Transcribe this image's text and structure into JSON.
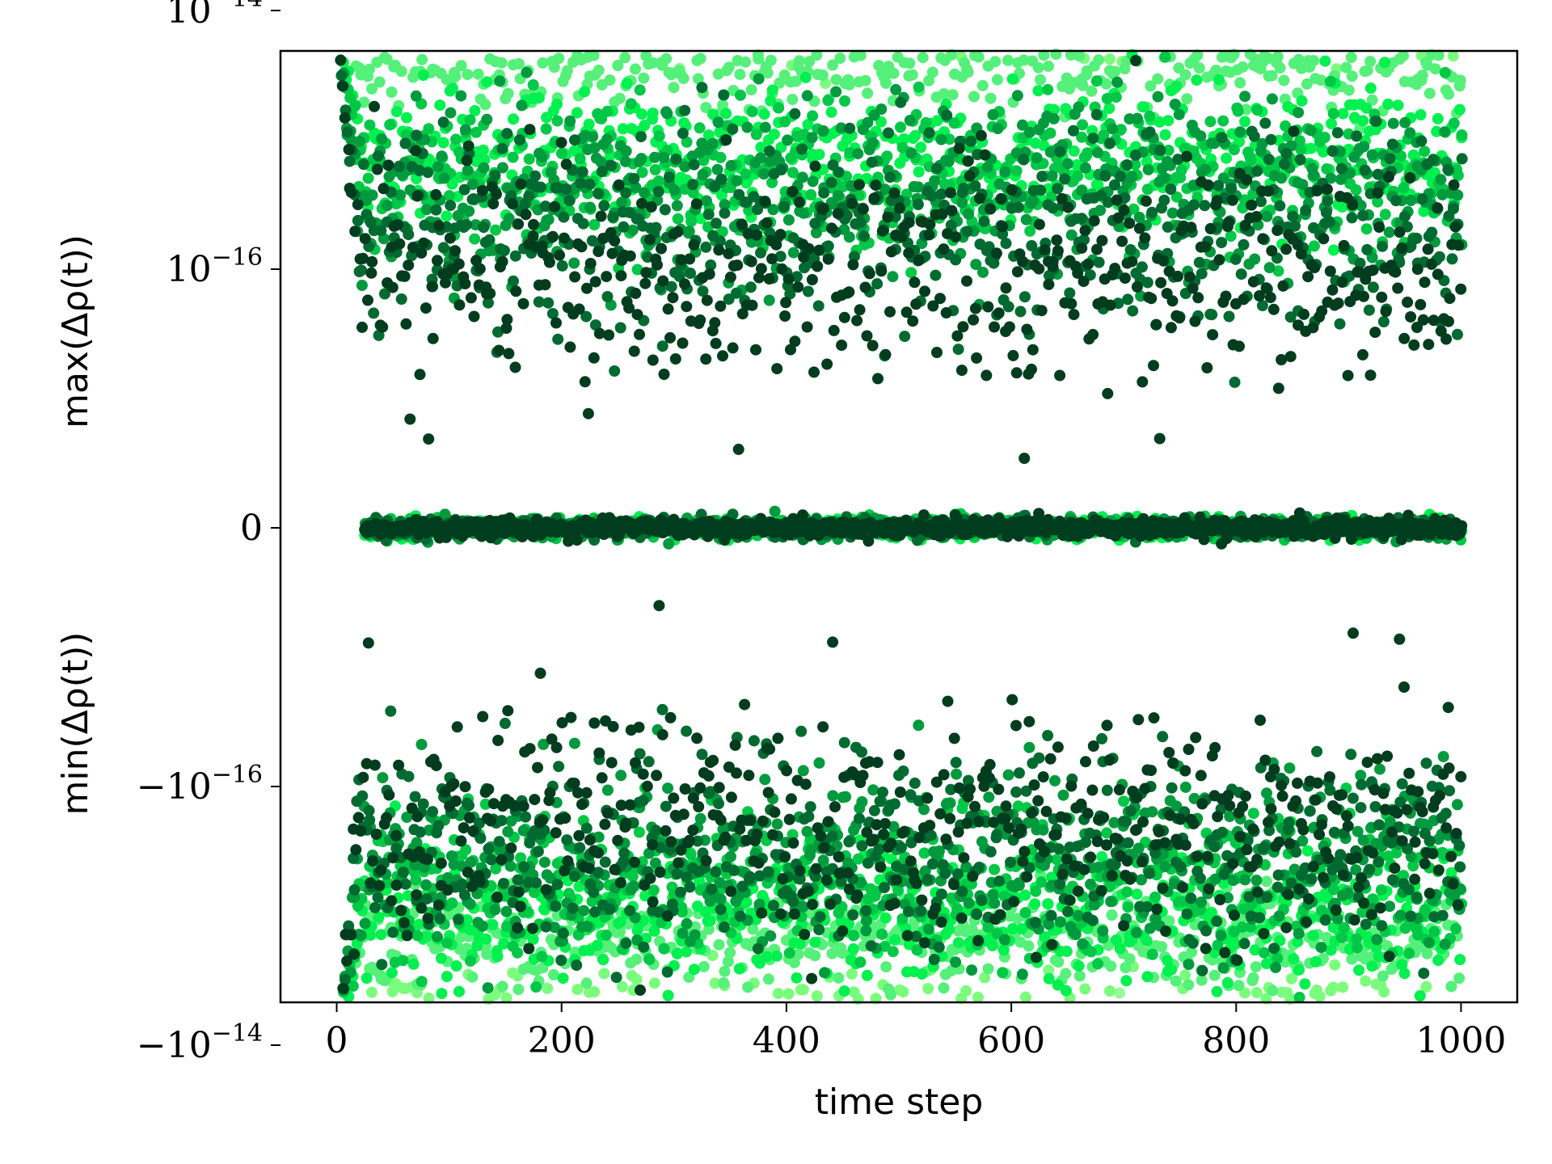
{
  "chart_data": {
    "type": "scatter",
    "title": "",
    "xlabel": "time step",
    "ylabel_top": "max(Δρ(t))",
    "ylabel_bottom": "min(Δρ(t))",
    "xlim": [
      -50,
      1050
    ],
    "x_ticks": [
      0,
      200,
      400,
      600,
      800,
      1000
    ],
    "x_tick_labels": [
      "0",
      "200",
      "400",
      "600",
      "800",
      "1000"
    ],
    "y_scale": "symlog",
    "ylim": [
      -5e-14,
      5e-14
    ],
    "y_ticks": [
      1e-14,
      1e-16,
      0,
      -1e-16,
      -1e-14
    ],
    "y_tick_labels": [
      {
        "sign": "",
        "base": "10",
        "exp": "−14"
      },
      {
        "sign": "",
        "base": "10",
        "exp": "−16"
      },
      {
        "sign": "",
        "base": "0",
        "exp": ""
      },
      {
        "sign": "−",
        "base": "10",
        "exp": "−16"
      },
      {
        "sign": "−",
        "base": "10",
        "exp": "−14"
      }
    ],
    "grid": false,
    "legend": "none",
    "series": [
      {
        "color": "#98fb98",
        "max_level": 3e-14,
        "min_level": -2e-14,
        "spread_decades": 0.35
      },
      {
        "color": "#7cfc7c",
        "max_level": 1e-14,
        "min_level": -6e-15,
        "spread_decades": 0.3
      },
      {
        "color": "#55f07a",
        "max_level": 4e-15,
        "min_level": -1.5e-15,
        "spread_decades": 0.35
      },
      {
        "color": "#00f050",
        "max_level": 8e-16,
        "min_level": -1e-15,
        "spread_decades": 0.5
      },
      {
        "color": "#00c846",
        "max_level": 5e-16,
        "min_level": -6e-16,
        "spread_decades": 0.6
      },
      {
        "color": "#009a3e",
        "max_level": 4e-16,
        "min_level": -4e-16,
        "spread_decades": 0.7
      },
      {
        "color": "#006b31",
        "max_level": 2e-16,
        "min_level": -3e-16,
        "spread_decades": 0.8
      },
      {
        "color": "#003c1e",
        "max_level": 1e-16,
        "min_level": -2e-16,
        "spread_decades": 0.9
      }
    ],
    "x_range": [
      0,
      1000
    ],
    "initial_spike": {
      "x": [
        0,
        10
      ],
      "max": 9e-15,
      "min": -9e-15
    }
  }
}
